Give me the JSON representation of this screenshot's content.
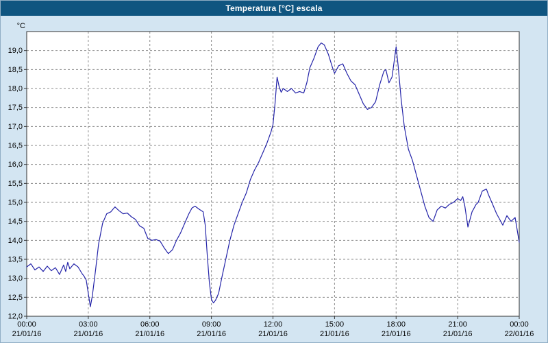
{
  "window": {
    "title": "Temperatura [°C] escala"
  },
  "colors": {
    "titlebar": "#0f5580",
    "titlebar_text": "#ffffff",
    "window_bg": "#d3e5f2",
    "plot_bg": "#ffffff",
    "grid": "#8a8a8a",
    "axis": "#333333",
    "text": "#000000",
    "line": "#2323a8"
  },
  "chart_data": {
    "type": "line",
    "title": "Temperatura [°C] escala",
    "ylabel": "°C",
    "xlabel": "",
    "grid": "dashed",
    "legend": "none",
    "ylim": [
      12.0,
      19.5
    ],
    "xlim_hours": [
      0,
      24
    ],
    "y_ticks": [
      {
        "v": 19.0,
        "label": "19,0"
      },
      {
        "v": 18.5,
        "label": "18,5"
      },
      {
        "v": 18.0,
        "label": "18,0"
      },
      {
        "v": 17.5,
        "label": "17,5"
      },
      {
        "v": 17.0,
        "label": "17,0"
      },
      {
        "v": 16.5,
        "label": "16,5"
      },
      {
        "v": 16.0,
        "label": "16,0"
      },
      {
        "v": 15.5,
        "label": "15,5"
      },
      {
        "v": 15.0,
        "label": "15,0"
      },
      {
        "v": 14.5,
        "label": "14,5"
      },
      {
        "v": 14.0,
        "label": "14,0"
      },
      {
        "v": 13.5,
        "label": "13,5"
      },
      {
        "v": 13.0,
        "label": "13,0"
      },
      {
        "v": 12.5,
        "label": "12,5"
      },
      {
        "v": 12.0,
        "label": "12,0"
      }
    ],
    "x_ticks": [
      {
        "h": 0,
        "time": "00:00",
        "date": "21/01/16"
      },
      {
        "h": 3,
        "time": "03:00",
        "date": "21/01/16"
      },
      {
        "h": 6,
        "time": "06:00",
        "date": "21/01/16"
      },
      {
        "h": 9,
        "time": "09:00",
        "date": "21/01/16"
      },
      {
        "h": 12,
        "time": "12:00",
        "date": "21/01/16"
      },
      {
        "h": 15,
        "time": "15:00",
        "date": "21/01/16"
      },
      {
        "h": 18,
        "time": "18:00",
        "date": "21/01/16"
      },
      {
        "h": 21,
        "time": "21:00",
        "date": "21/01/16"
      },
      {
        "h": 24,
        "time": "00:00",
        "date": "22/01/16"
      }
    ],
    "series": [
      {
        "name": "Temperatura",
        "points": [
          [
            0.0,
            13.3
          ],
          [
            0.2,
            13.38
          ],
          [
            0.4,
            13.22
          ],
          [
            0.6,
            13.3
          ],
          [
            0.8,
            13.18
          ],
          [
            1.0,
            13.32
          ],
          [
            1.2,
            13.2
          ],
          [
            1.4,
            13.28
          ],
          [
            1.6,
            13.1
          ],
          [
            1.8,
            13.35
          ],
          [
            1.9,
            13.18
          ],
          [
            2.0,
            13.42
          ],
          [
            2.1,
            13.25
          ],
          [
            2.3,
            13.38
          ],
          [
            2.5,
            13.3
          ],
          [
            2.7,
            13.12
          ],
          [
            2.8,
            13.05
          ],
          [
            2.9,
            12.95
          ],
          [
            3.0,
            12.6
          ],
          [
            3.1,
            12.25
          ],
          [
            3.2,
            12.55
          ],
          [
            3.35,
            13.2
          ],
          [
            3.5,
            13.9
          ],
          [
            3.7,
            14.45
          ],
          [
            3.9,
            14.7
          ],
          [
            4.1,
            14.75
          ],
          [
            4.3,
            14.88
          ],
          [
            4.5,
            14.78
          ],
          [
            4.7,
            14.7
          ],
          [
            4.9,
            14.72
          ],
          [
            5.1,
            14.62
          ],
          [
            5.3,
            14.55
          ],
          [
            5.5,
            14.38
          ],
          [
            5.7,
            14.32
          ],
          [
            5.9,
            14.05
          ],
          [
            6.1,
            14.0
          ],
          [
            6.3,
            14.02
          ],
          [
            6.5,
            13.98
          ],
          [
            6.7,
            13.8
          ],
          [
            6.9,
            13.65
          ],
          [
            7.1,
            13.75
          ],
          [
            7.3,
            14.0
          ],
          [
            7.5,
            14.2
          ],
          [
            7.7,
            14.45
          ],
          [
            7.9,
            14.7
          ],
          [
            8.05,
            14.85
          ],
          [
            8.2,
            14.9
          ],
          [
            8.4,
            14.82
          ],
          [
            8.6,
            14.75
          ],
          [
            8.7,
            14.4
          ],
          [
            8.8,
            13.6
          ],
          [
            8.9,
            12.9
          ],
          [
            9.0,
            12.45
          ],
          [
            9.1,
            12.35
          ],
          [
            9.2,
            12.42
          ],
          [
            9.35,
            12.6
          ],
          [
            9.5,
            13.0
          ],
          [
            9.7,
            13.5
          ],
          [
            9.9,
            14.0
          ],
          [
            10.1,
            14.4
          ],
          [
            10.3,
            14.7
          ],
          [
            10.5,
            15.0
          ],
          [
            10.7,
            15.25
          ],
          [
            10.9,
            15.6
          ],
          [
            11.1,
            15.85
          ],
          [
            11.3,
            16.05
          ],
          [
            11.5,
            16.3
          ],
          [
            11.7,
            16.55
          ],
          [
            11.9,
            16.85
          ],
          [
            12.0,
            17.05
          ],
          [
            12.1,
            17.6
          ],
          [
            12.2,
            18.3
          ],
          [
            12.3,
            18.05
          ],
          [
            12.4,
            17.9
          ],
          [
            12.5,
            18.0
          ],
          [
            12.7,
            17.92
          ],
          [
            12.9,
            18.0
          ],
          [
            13.1,
            17.88
          ],
          [
            13.3,
            17.92
          ],
          [
            13.5,
            17.88
          ],
          [
            13.65,
            18.15
          ],
          [
            13.8,
            18.55
          ],
          [
            14.0,
            18.8
          ],
          [
            14.2,
            19.1
          ],
          [
            14.35,
            19.2
          ],
          [
            14.5,
            19.15
          ],
          [
            14.7,
            18.9
          ],
          [
            14.9,
            18.55
          ],
          [
            15.0,
            18.4
          ],
          [
            15.2,
            18.6
          ],
          [
            15.4,
            18.65
          ],
          [
            15.6,
            18.4
          ],
          [
            15.8,
            18.2
          ],
          [
            16.0,
            18.1
          ],
          [
            16.2,
            17.85
          ],
          [
            16.4,
            17.6
          ],
          [
            16.6,
            17.45
          ],
          [
            16.8,
            17.5
          ],
          [
            17.0,
            17.65
          ],
          [
            17.2,
            18.1
          ],
          [
            17.4,
            18.45
          ],
          [
            17.5,
            18.5
          ],
          [
            17.65,
            18.15
          ],
          [
            17.8,
            18.3
          ],
          [
            17.9,
            18.7
          ],
          [
            18.0,
            19.1
          ],
          [
            18.1,
            18.6
          ],
          [
            18.25,
            17.7
          ],
          [
            18.4,
            17.0
          ],
          [
            18.6,
            16.4
          ],
          [
            18.8,
            16.1
          ],
          [
            19.0,
            15.7
          ],
          [
            19.2,
            15.3
          ],
          [
            19.4,
            14.9
          ],
          [
            19.6,
            14.6
          ],
          [
            19.8,
            14.5
          ],
          [
            20.0,
            14.8
          ],
          [
            20.2,
            14.9
          ],
          [
            20.4,
            14.85
          ],
          [
            20.6,
            14.95
          ],
          [
            20.8,
            15.0
          ],
          [
            21.0,
            15.1
          ],
          [
            21.15,
            15.05
          ],
          [
            21.25,
            15.15
          ],
          [
            21.35,
            14.9
          ],
          [
            21.5,
            14.35
          ],
          [
            21.7,
            14.75
          ],
          [
            21.9,
            14.95
          ],
          [
            22.0,
            15.0
          ],
          [
            22.2,
            15.3
          ],
          [
            22.4,
            15.35
          ],
          [
            22.5,
            15.2
          ],
          [
            22.7,
            14.95
          ],
          [
            22.9,
            14.7
          ],
          [
            23.0,
            14.6
          ],
          [
            23.2,
            14.4
          ],
          [
            23.4,
            14.65
          ],
          [
            23.6,
            14.5
          ],
          [
            23.8,
            14.6
          ],
          [
            24.0,
            13.95
          ]
        ]
      }
    ]
  }
}
